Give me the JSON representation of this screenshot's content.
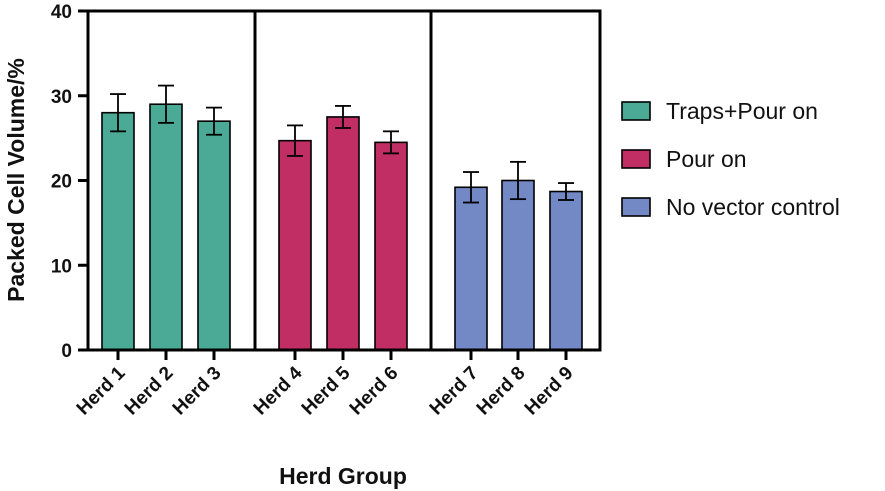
{
  "chart_data": {
    "type": "bar",
    "title": "",
    "xlabel": "Herd Group",
    "ylabel": "Packed Cell Volume/%",
    "ylim": [
      0,
      40
    ],
    "yticks": [
      0,
      10,
      20,
      30,
      40
    ],
    "categories": [
      "Herd 1",
      "Herd 2",
      "Herd 3",
      "Herd 4",
      "Herd 5",
      "Herd 6",
      "Herd 7",
      "Herd 8",
      "Herd 9"
    ],
    "values": [
      28.0,
      29.0,
      27.0,
      24.7,
      27.5,
      24.5,
      19.2,
      20.0,
      18.7
    ],
    "errors": [
      2.2,
      2.2,
      1.6,
      1.8,
      1.3,
      1.3,
      1.8,
      2.2,
      1.0
    ],
    "groups": [
      {
        "name": "Traps+Pour on",
        "color": "#4aaa96",
        "members": [
          0,
          1,
          2
        ]
      },
      {
        "name": "Pour on",
        "color": "#c12e63",
        "members": [
          3,
          4,
          5
        ]
      },
      {
        "name": "No vector control",
        "color": "#7389c6",
        "members": [
          6,
          7,
          8
        ]
      }
    ],
    "legend_position": "right"
  }
}
